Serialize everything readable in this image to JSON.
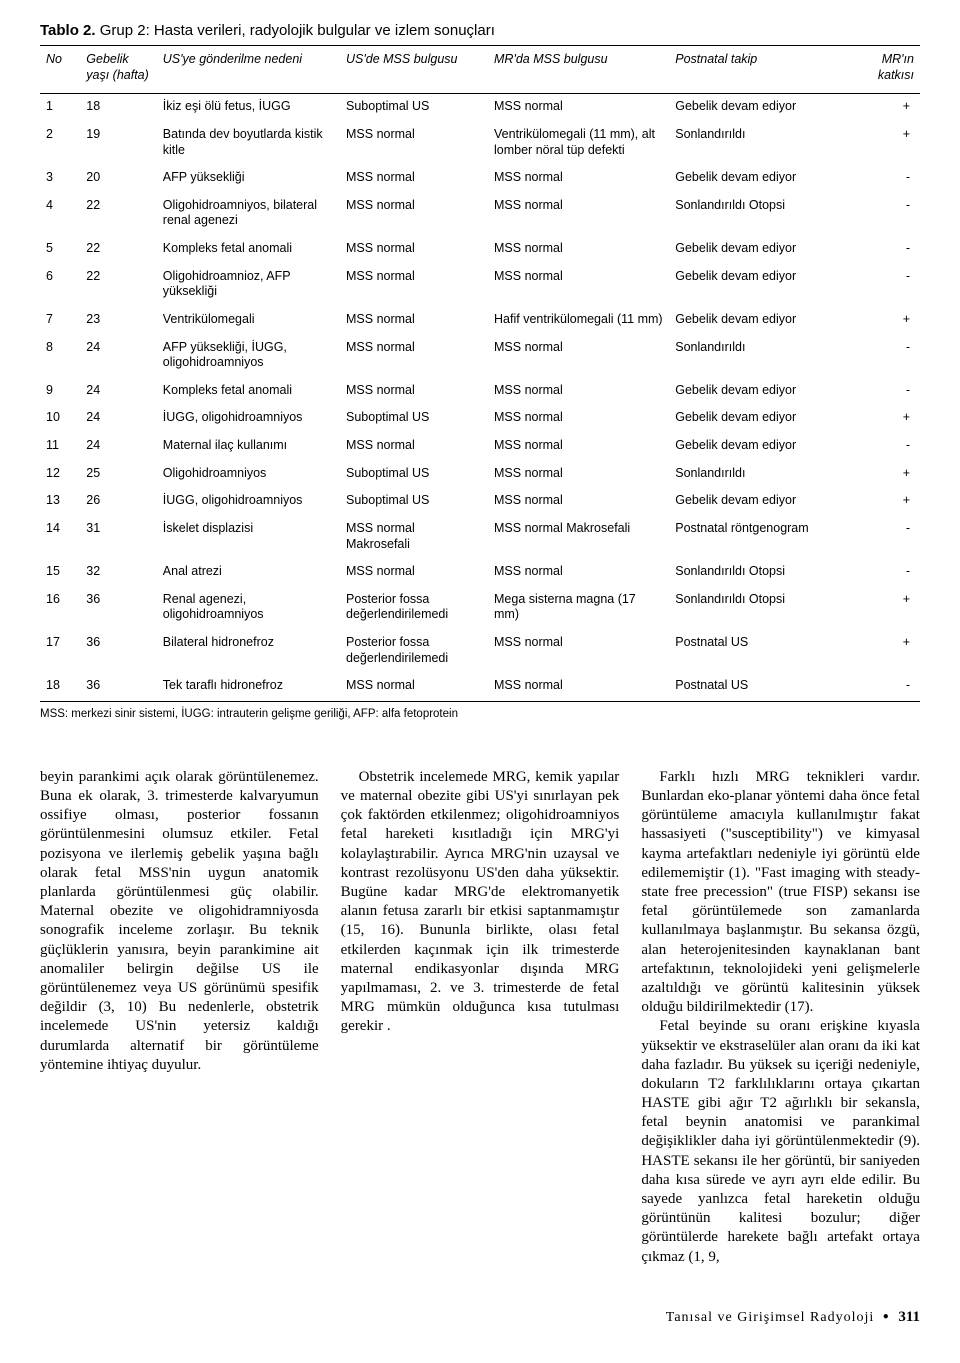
{
  "table": {
    "title_prefix": "Tablo 2.",
    "title_text": " Grup 2: Hasta verileri, radyolojik bulgular ve izlem sonuçları",
    "headers": {
      "no": "No",
      "age": "Gebelik yaşı (hafta)",
      "reason": "US'ye gönderilme nedeni",
      "us": "US'de MSS bulgusu",
      "mr": "MR'da MSS bulgusu",
      "follow": "Postnatal takip",
      "contrib": "MR'ın katkısı"
    },
    "rows": [
      {
        "no": "1",
        "age": "18",
        "reason": "İkiz eşi ölü fetus, İUGG",
        "us": "Suboptimal US",
        "mr": "MSS normal",
        "follow": "Gebelik devam ediyor",
        "contrib": "+"
      },
      {
        "no": "2",
        "age": "19",
        "reason": "Batında dev boyutlarda kistik kitle",
        "us": "MSS normal",
        "mr": "Ventrikülomegali (11 mm), alt lomber nöral tüp defekti",
        "follow": "Sonlandırıldı",
        "contrib": "+"
      },
      {
        "no": "3",
        "age": "20",
        "reason": "AFP yüksekliği",
        "us": "MSS normal",
        "mr": "MSS normal",
        "follow": "Gebelik devam ediyor",
        "contrib": "-"
      },
      {
        "no": "4",
        "age": "22",
        "reason": "Oligohidroamniyos, bilateral renal agenezi",
        "us": "MSS normal",
        "mr": "MSS normal",
        "follow": "Sonlandırıldı Otopsi",
        "contrib": "-"
      },
      {
        "no": "5",
        "age": "22",
        "reason": "Kompleks fetal anomali",
        "us": "MSS normal",
        "mr": "MSS normal",
        "follow": "Gebelik devam ediyor",
        "contrib": "-"
      },
      {
        "no": "6",
        "age": "22",
        "reason": "Oligohidroamnioz, AFP yüksekliği",
        "us": "MSS normal",
        "mr": "MSS normal",
        "follow": "Gebelik devam ediyor",
        "contrib": "-"
      },
      {
        "no": "7",
        "age": "23",
        "reason": "Ventrikülomegali",
        "us": "MSS normal",
        "mr": "Hafif ventrikülomegali (11 mm)",
        "follow": "Gebelik devam ediyor",
        "contrib": "+"
      },
      {
        "no": "8",
        "age": "24",
        "reason": "AFP yüksekliği, İUGG, oligohidroamniyos",
        "us": "MSS normal",
        "mr": "MSS normal",
        "follow": "Sonlandırıldı",
        "contrib": "-"
      },
      {
        "no": "9",
        "age": "24",
        "reason": "Kompleks fetal anomali",
        "us": "MSS normal",
        "mr": "MSS normal",
        "follow": "Gebelik devam ediyor",
        "contrib": "-"
      },
      {
        "no": "10",
        "age": "24",
        "reason": "İUGG, oligohidroamniyos",
        "us": "Suboptimal US",
        "mr": "MSS normal",
        "follow": "Gebelik devam ediyor",
        "contrib": "+"
      },
      {
        "no": "11",
        "age": "24",
        "reason": "Maternal ilaç kullanımı",
        "us": "MSS normal",
        "mr": "MSS normal",
        "follow": "Gebelik devam ediyor",
        "contrib": "-"
      },
      {
        "no": "12",
        "age": "25",
        "reason": "Oligohidroamniyos",
        "us": "Suboptimal US",
        "mr": "MSS normal",
        "follow": "Sonlandırıldı",
        "contrib": "+"
      },
      {
        "no": "13",
        "age": "26",
        "reason": "İUGG, oligohidroamniyos",
        "us": "Suboptimal US",
        "mr": "MSS normal",
        "follow": "Gebelik devam ediyor",
        "contrib": "+"
      },
      {
        "no": "14",
        "age": "31",
        "reason": "İskelet displazisi",
        "us": "MSS normal Makrosefali",
        "mr": "MSS normal Makrosefali",
        "follow": "Postnatal röntgenogram",
        "contrib": "-"
      },
      {
        "no": "15",
        "age": "32",
        "reason": "Anal atrezi",
        "us": "MSS normal",
        "mr": "MSS normal",
        "follow": "Sonlandırıldı Otopsi",
        "contrib": "-"
      },
      {
        "no": "16",
        "age": "36",
        "reason": "Renal agenezi, oligohidroamniyos",
        "us": "Posterior fossa değerlendirilemedi",
        "mr": "Mega sisterna magna (17 mm)",
        "follow": "Sonlandırıldı Otopsi",
        "contrib": "+"
      },
      {
        "no": "17",
        "age": "36",
        "reason": "Bilateral hidronefroz",
        "us": "Posterior fossa değerlendirilemedi",
        "mr": "MSS normal",
        "follow": "Postnatal US",
        "contrib": "+"
      },
      {
        "no": "18",
        "age": "36",
        "reason": "Tek taraflı hidronefroz",
        "us": "MSS normal",
        "mr": "MSS normal",
        "follow": "Postnatal US",
        "contrib": "-"
      }
    ],
    "footnote": "MSS: merkezi sinir sistemi, İUGG: intrauterin gelişme geriliği, AFP: alfa fetoprotein"
  },
  "body": {
    "p1": "beyin parankimi açık olarak görüntülenemez. Buna ek olarak, 3. trimesterde kalvaryumun ossifiye olması, posterior fossanın görüntülenmesini olumsuz etkiler. Fetal pozisyona ve ilerlemiş gebelik yaşına bağlı olarak fetal MSS'nin uygun anatomik planlarda görüntülenmesi güç olabilir. Maternal obezite ve oligohidramniyosda sonografik inceleme zorlaşır. Bu teknik güçlüklerin yanısıra, beyin parankimine ait anomaliler belirgin değilse US ile görüntülenemez veya US görünümü spesifik değildir (3, 10) Bu nedenlerle, obstetrik incelemede US'nin yetersiz kaldığı durumlarda alternatif bir görüntüleme yöntemine ihtiyaç duyulur.",
    "p2": "Obstetrik incelemede MRG, kemik yapılar ve maternal obezite gibi US'yi sınırlayan pek çok faktörden etkilenmez; oligohidroamniyos fetal hareketi kısıtladığı için MRG'yi kolaylaştırabilir. Ayrıca MRG'nin uzaysal ve kontrast rezolüsyonu US'den daha yüksektir. Bugüne kadar MRG'de elektromanyetik alanın fetusa zararlı bir etkisi saptanmamıştır (15, 16). Bununla birlikte, olası fetal etkilerden kaçınmak için во ilk trimesterde maternal endikasyonlar dışında MRG yapılmaması, 2. ve 3. trimesterde de fetal MRG mümkün olduğunca kısa tutulması gerekir .",
    "p2b": "Obstetrik incelemede MRG, kemik yapılar ve maternal obezite gibi US'yi sınırlayan pek çok faktörden etkilenmez; oligohidroamniyos fetal hareketi kısıtladığı için MRG'yi kolaylaştırabilir. Ayrıca MRG'nin uzaysal ve kontrast rezolüsyonu US'den daha yüksektir. Bugüne kadar MRG'de elektromanyetik alanın fetusa zararlı bir etkisi saptanmamıştır (15, 16). Bununla birlikte, olası fetal etkilerden kaçınmak için ilk trimesterde maternal endikasyonlar dışında MRG yapılmaması, 2. ve 3. trimesterde de fetal MRG mümkün olduğunca kısa tutulması gerekir .",
    "p3": "Farklı hızlı MRG teknikleri vardır. Bunlardan eko-planar yöntemi daha önce fetal görüntüleme amacıyla kullanılmıştır fakat hassasiyeti (\"susceptibility\") ve kimyasal kayma artefaktları nedeniyle iyi görüntü elde edilememiştir (1). \"Fast imaging with steady-state free precession\" (true FISP) sekansı ise fetal görüntülemede son zamanlarda kullanılmaya başlanmıştır. Bu sekansa özgü, alan heterojenitesinden kaynaklanan bant artefaktının, teknolojideki yeni gelişmelerle azaltıldığı ve görüntü kalitesinin yüksek olduğu bildirilmektedir (17).",
    "p4": "Fetal beyinde su oranı erişkine kıyasla yüksektir ve ekstraselüler alan oranı da iki kat daha fazladır. Bu yüksek su içeriği nedeniyle, dokuların T2 farklılıklarını ortaya çıkartan HASTE gibi ağır T2 ağırlıklı bir sekansla, fetal beynin anatomisi ve parankimal değişiklikler daha iyi görüntülenmektedir (9). HASTE sekansı ile her görüntü, bir saniyeden daha kısa sürede ve ayrı ayrı elde edilir. Bu sayede yanlızca fetal hareketin olduğu görüntünün kalitesi bozulur; diğer görüntülerde harekete bağlı artefakt ortaya çıkmaz (1, 9,"
  },
  "footer": {
    "journal": "Tanısal ve Girişimsel Radyoloji",
    "page": "311"
  }
}
